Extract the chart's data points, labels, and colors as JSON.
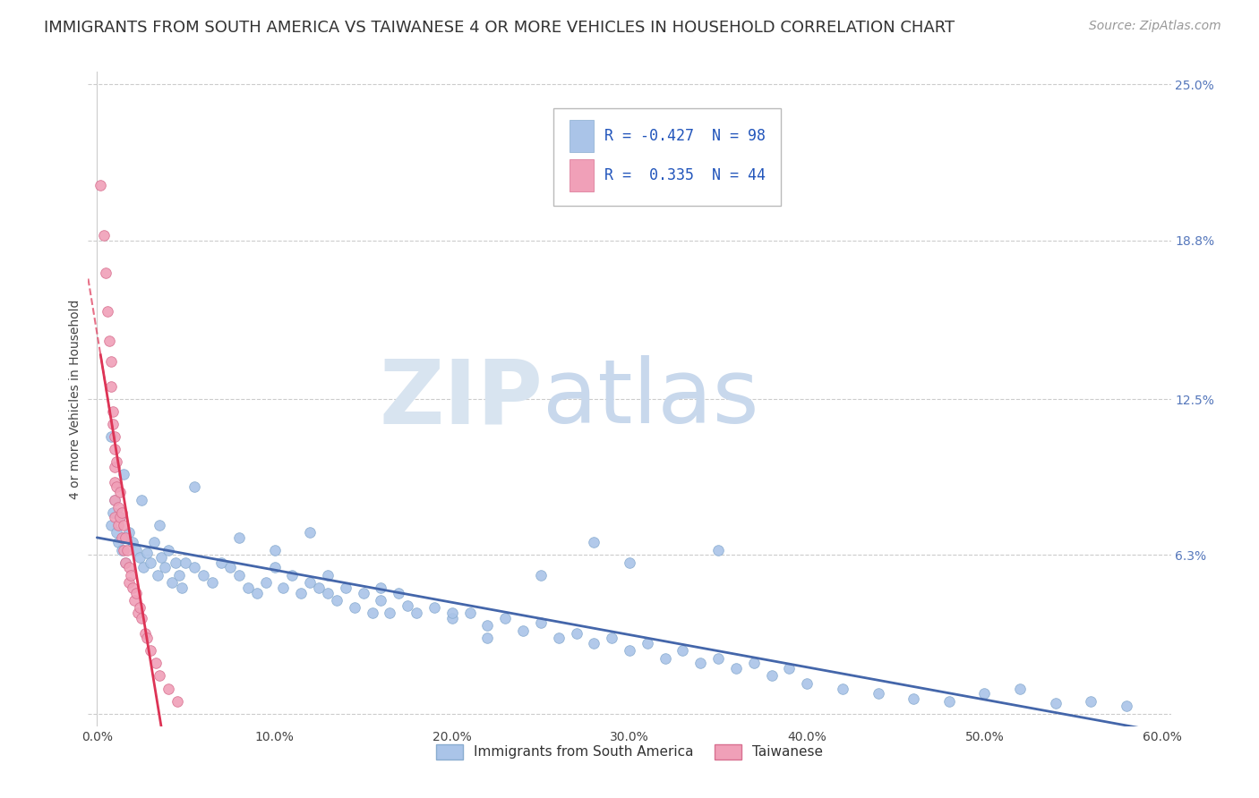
{
  "title": "IMMIGRANTS FROM SOUTH AMERICA VS TAIWANESE 4 OR MORE VEHICLES IN HOUSEHOLD CORRELATION CHART",
  "source": "Source: ZipAtlas.com",
  "xlabel": "",
  "ylabel": "4 or more Vehicles in Household",
  "xlim": [
    -0.005,
    0.605
  ],
  "ylim": [
    -0.005,
    0.255
  ],
  "xticks": [
    0.0,
    0.1,
    0.2,
    0.3,
    0.4,
    0.5,
    0.6
  ],
  "xticklabels": [
    "0.0%",
    "10.0%",
    "20.0%",
    "30.0%",
    "40.0%",
    "50.0%",
    "60.0%"
  ],
  "yticks_right": [
    0.063,
    0.125,
    0.188,
    0.25
  ],
  "yticklabels_right": [
    "6.3%",
    "12.5%",
    "18.8%",
    "25.0%"
  ],
  "blue_color": "#aac4e8",
  "pink_color": "#f0a0b8",
  "blue_edge": "#8aadd0",
  "pink_edge": "#d87090",
  "trend_blue": "#4466aa",
  "trend_pink": "#dd3355",
  "watermark_zip": "ZIP",
  "watermark_atlas": "atlas",
  "watermark_color": "#dde8f5",
  "background": "#ffffff",
  "grid_color": "#cccccc",
  "blue_scatter_x": [
    0.008,
    0.009,
    0.01,
    0.011,
    0.012,
    0.013,
    0.014,
    0.015,
    0.016,
    0.018,
    0.02,
    0.022,
    0.024,
    0.026,
    0.028,
    0.03,
    0.032,
    0.034,
    0.036,
    0.038,
    0.04,
    0.042,
    0.044,
    0.046,
    0.048,
    0.05,
    0.055,
    0.06,
    0.065,
    0.07,
    0.075,
    0.08,
    0.085,
    0.09,
    0.095,
    0.1,
    0.105,
    0.11,
    0.115,
    0.12,
    0.125,
    0.13,
    0.135,
    0.14,
    0.145,
    0.15,
    0.155,
    0.16,
    0.165,
    0.17,
    0.175,
    0.18,
    0.19,
    0.2,
    0.21,
    0.22,
    0.23,
    0.24,
    0.25,
    0.26,
    0.27,
    0.28,
    0.29,
    0.3,
    0.31,
    0.32,
    0.33,
    0.34,
    0.35,
    0.36,
    0.37,
    0.38,
    0.39,
    0.4,
    0.42,
    0.44,
    0.46,
    0.48,
    0.5,
    0.52,
    0.54,
    0.56,
    0.58,
    0.008,
    0.015,
    0.025,
    0.035,
    0.055,
    0.08,
    0.1,
    0.13,
    0.16,
    0.2,
    0.25,
    0.3,
    0.35,
    0.28,
    0.12,
    0.22
  ],
  "blue_scatter_y": [
    0.075,
    0.08,
    0.085,
    0.072,
    0.068,
    0.078,
    0.065,
    0.07,
    0.06,
    0.072,
    0.068,
    0.065,
    0.062,
    0.058,
    0.064,
    0.06,
    0.068,
    0.055,
    0.062,
    0.058,
    0.065,
    0.052,
    0.06,
    0.055,
    0.05,
    0.06,
    0.058,
    0.055,
    0.052,
    0.06,
    0.058,
    0.055,
    0.05,
    0.048,
    0.052,
    0.058,
    0.05,
    0.055,
    0.048,
    0.052,
    0.05,
    0.048,
    0.045,
    0.05,
    0.042,
    0.048,
    0.04,
    0.045,
    0.04,
    0.048,
    0.043,
    0.04,
    0.042,
    0.038,
    0.04,
    0.035,
    0.038,
    0.033,
    0.036,
    0.03,
    0.032,
    0.028,
    0.03,
    0.025,
    0.028,
    0.022,
    0.025,
    0.02,
    0.022,
    0.018,
    0.02,
    0.015,
    0.018,
    0.012,
    0.01,
    0.008,
    0.006,
    0.005,
    0.008,
    0.01,
    0.004,
    0.005,
    0.003,
    0.11,
    0.095,
    0.085,
    0.075,
    0.09,
    0.07,
    0.065,
    0.055,
    0.05,
    0.04,
    0.055,
    0.06,
    0.065,
    0.068,
    0.072,
    0.03
  ],
  "pink_scatter_x": [
    0.002,
    0.004,
    0.005,
    0.006,
    0.007,
    0.008,
    0.008,
    0.009,
    0.009,
    0.01,
    0.01,
    0.01,
    0.01,
    0.01,
    0.01,
    0.011,
    0.011,
    0.012,
    0.012,
    0.013,
    0.013,
    0.014,
    0.014,
    0.015,
    0.015,
    0.016,
    0.016,
    0.017,
    0.018,
    0.018,
    0.019,
    0.02,
    0.021,
    0.022,
    0.023,
    0.024,
    0.025,
    0.027,
    0.028,
    0.03,
    0.033,
    0.035,
    0.04,
    0.045
  ],
  "pink_scatter_y": [
    0.21,
    0.19,
    0.175,
    0.16,
    0.148,
    0.14,
    0.13,
    0.12,
    0.115,
    0.11,
    0.105,
    0.098,
    0.092,
    0.085,
    0.078,
    0.1,
    0.09,
    0.082,
    0.075,
    0.088,
    0.078,
    0.08,
    0.07,
    0.075,
    0.065,
    0.07,
    0.06,
    0.065,
    0.058,
    0.052,
    0.055,
    0.05,
    0.045,
    0.048,
    0.04,
    0.042,
    0.038,
    0.032,
    0.03,
    0.025,
    0.02,
    0.015,
    0.01,
    0.005
  ],
  "title_fontsize": 13,
  "source_fontsize": 10,
  "axis_label_fontsize": 10,
  "tick_fontsize": 10
}
